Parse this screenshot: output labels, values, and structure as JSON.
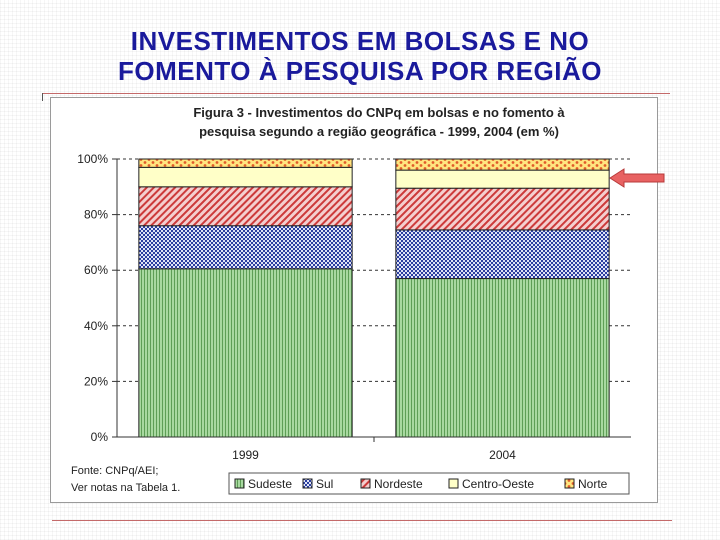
{
  "slide": {
    "title_line1": "INVESTIMENTOS EM  BOLSAS E NO",
    "title_line2": "FOMENTO À PESQUISA POR REGIÃO"
  },
  "chart_data": {
    "type": "bar",
    "stacked": true,
    "percent": true,
    "title_line1": "Figura 3 - Investimentos do CNPq em bolsas e no fomento à",
    "title_line2": "pesquisa segundo a região geográfica - 1999, 2004 (em %)",
    "categories": [
      "1999",
      "2004"
    ],
    "y_ticks": [
      "0%",
      "20%",
      "40%",
      "60%",
      "80%",
      "100%"
    ],
    "ylim": [
      0,
      100
    ],
    "grid": true,
    "legend_position": "bottom",
    "series": [
      {
        "name": "Sudeste",
        "values": [
          60.5,
          57.0
        ],
        "color": "#a8d9a0",
        "stripe": "#6aaa60",
        "icon": "vertical-stripe-pattern"
      },
      {
        "name": "Sul",
        "values": [
          15.5,
          17.5
        ],
        "color": "#cfd6f0",
        "stripe": "#2b3ea0",
        "icon": "diagonal-checker-pattern"
      },
      {
        "name": "Nordeste",
        "values": [
          14.0,
          15.0
        ],
        "color": "#f2c8c8",
        "stripe": "#cc3a3a",
        "icon": "diagonal-hatch-pattern"
      },
      {
        "name": "Centro-Oeste",
        "values": [
          7.0,
          6.5
        ],
        "color": "#ffffc8",
        "stripe": "#ffffc8",
        "icon": "solid-fill"
      },
      {
        "name": "Norte",
        "values": [
          3.0,
          4.0
        ],
        "color": "#ffe680",
        "stripe": "#e06030",
        "icon": "dotted-pattern"
      }
    ],
    "source_line1": "Fonte: CNPq/AEI;",
    "source_line2": "Ver notas na Tabela 1.",
    "annotation": {
      "type": "arrow",
      "color": "#e05050",
      "points_to": "Centro-Oeste 2004"
    }
  }
}
